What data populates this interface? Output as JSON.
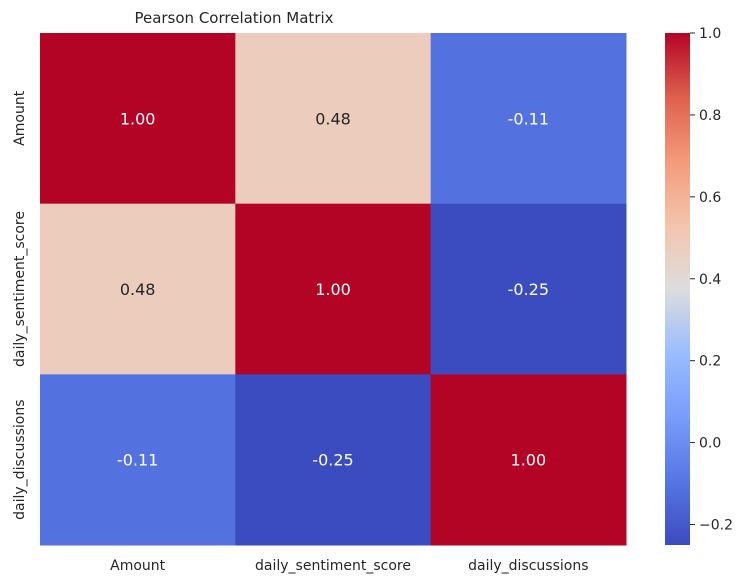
{
  "chart_data": {
    "type": "heatmap",
    "title": "Pearson Correlation Matrix",
    "x_categories": [
      "Amount",
      "daily_sentiment_score",
      "daily_discussions"
    ],
    "y_categories": [
      "Amount",
      "daily_sentiment_score",
      "daily_discussions"
    ],
    "values": [
      [
        1.0,
        0.48,
        -0.11
      ],
      [
        0.48,
        1.0,
        -0.25
      ],
      [
        -0.11,
        -0.25,
        1.0
      ]
    ],
    "value_format": "2 decimals",
    "colormap": "coolwarm",
    "vmin": -0.25,
    "vmax": 1.0,
    "colorbar_ticks": [
      "−0.2",
      "0.0",
      "0.2",
      "0.4",
      "0.6",
      "0.8",
      "1.0"
    ],
    "colorbar_tick_values": [
      -0.2,
      0.0,
      0.2,
      0.4,
      0.6,
      0.8,
      1.0
    ],
    "grid": false,
    "legend": "colorbar right"
  }
}
